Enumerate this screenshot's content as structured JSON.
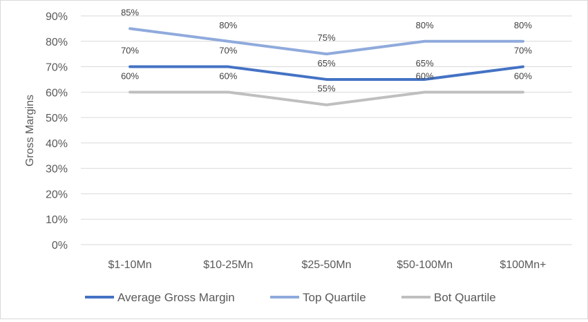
{
  "chart_data": {
    "type": "line",
    "title": "",
    "xlabel": "",
    "ylabel": "Gross Margins",
    "ylim": [
      0,
      90
    ],
    "ytick_step": 10,
    "ytick_labels": [
      "0%",
      "10%",
      "20%",
      "30%",
      "40%",
      "50%",
      "60%",
      "70%",
      "80%",
      "90%"
    ],
    "grid": true,
    "legend_position": "bottom",
    "categories": [
      "$1-10Mn",
      "$10-25Mn",
      "$25-50Mn",
      "$50-100Mn",
      "$100Mn+"
    ],
    "series": [
      {
        "name": "Average Gross Margin",
        "color": "#4472C4",
        "values": [
          70,
          70,
          65,
          65,
          70
        ],
        "labels": [
          "70%",
          "70%",
          "65%",
          "65%",
          "70%"
        ]
      },
      {
        "name": "Top Quartile",
        "color": "#8FAADC",
        "values": [
          85,
          80,
          75,
          80,
          80
        ],
        "labels": [
          "85%",
          "80%",
          "75%",
          "80%",
          "80%"
        ]
      },
      {
        "name": "Bot Quartile",
        "color": "#BFBFBF",
        "values": [
          60,
          60,
          55,
          60,
          60
        ],
        "labels": [
          "60%",
          "60%",
          "55%",
          "60%",
          "60%"
        ]
      }
    ]
  }
}
